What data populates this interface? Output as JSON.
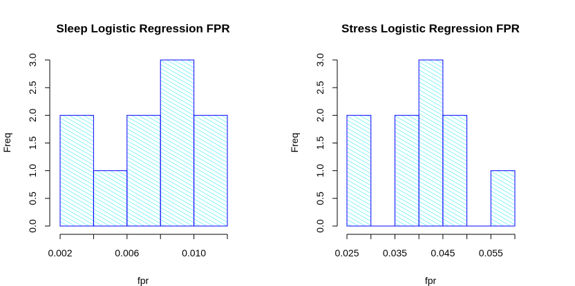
{
  "chart_data": [
    {
      "type": "bar",
      "title": "Sleep Logistic Regression FPR",
      "xlabel": "fpr",
      "ylabel": "Freq",
      "bins": [
        [
          0.002,
          0.004
        ],
        [
          0.004,
          0.006
        ],
        [
          0.006,
          0.008
        ],
        [
          0.008,
          0.01
        ],
        [
          0.01,
          0.012
        ]
      ],
      "values": [
        2,
        1,
        2,
        3,
        2
      ],
      "xlim": [
        0.002,
        0.012
      ],
      "ylim": [
        0,
        3
      ],
      "xticks": [
        0.002,
        0.004,
        0.006,
        0.008,
        0.01,
        0.012
      ],
      "xtick_labels": [
        "0.002",
        "",
        "0.006",
        "",
        "0.010",
        ""
      ],
      "yticks": [
        0,
        0.5,
        1,
        1.5,
        2,
        2.5,
        3
      ],
      "ytick_labels": [
        "0.0",
        "0.5",
        "1.0",
        "1.5",
        "2.0",
        "2.5",
        "3.0"
      ],
      "colors": {
        "border": "#0000ff",
        "hatch": "#00e5ee"
      }
    },
    {
      "type": "bar",
      "title": "Stress Logistic Regression FPR",
      "xlabel": "fpr",
      "ylabel": "Freq",
      "bins": [
        [
          0.025,
          0.03
        ],
        [
          0.03,
          0.035
        ],
        [
          0.035,
          0.04
        ],
        [
          0.04,
          0.045
        ],
        [
          0.045,
          0.05
        ],
        [
          0.05,
          0.055
        ],
        [
          0.055,
          0.06
        ]
      ],
      "values": [
        2,
        0,
        2,
        3,
        2,
        0,
        1
      ],
      "xlim": [
        0.025,
        0.06
      ],
      "ylim": [
        0,
        3
      ],
      "xticks": [
        0.025,
        0.03,
        0.035,
        0.04,
        0.045,
        0.05,
        0.055,
        0.06
      ],
      "xtick_labels": [
        "0.025",
        "",
        "0.035",
        "",
        "0.045",
        "",
        "0.055",
        ""
      ],
      "yticks": [
        0,
        0.5,
        1,
        1.5,
        2,
        2.5,
        3
      ],
      "ytick_labels": [
        "0.0",
        "0.5",
        "1.0",
        "1.5",
        "2.0",
        "2.5",
        "3.0"
      ],
      "colors": {
        "border": "#0000ff",
        "hatch": "#00e5ee"
      }
    }
  ]
}
